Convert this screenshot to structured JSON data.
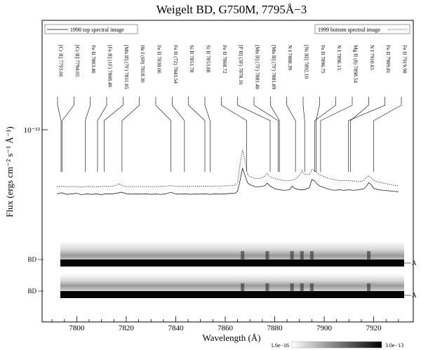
{
  "chart_data": {
    "type": "line",
    "title": "Weigelt BD, G750M, 7795Å−3",
    "xlabel": "Wavelength (Å)",
    "ylabel": "Flux (ergs cm⁻² s⁻¹ Å⁻¹)",
    "xlim": [
      7786,
      7936
    ],
    "y_scale": "log",
    "y_ticks": [
      {
        "value": 1e-12,
        "label": "10⁻¹²"
      }
    ],
    "x_ticks": [
      7800,
      7820,
      7840,
      7860,
      7880,
      7900,
      7920
    ],
    "legend": [
      {
        "label": "1998 top spectral image",
        "style": "solid",
        "placement": "top-left"
      },
      {
        "label": "1999 bottom spectral image",
        "style": "dotted",
        "placement": "top-right"
      }
    ],
    "line_labels": [
      {
        "text": "[Cr II] 7793.66",
        "wavelength": 7793.66
      },
      {
        "text": "[Cr II] 7794.05",
        "wavelength": 7794.05
      },
      {
        "text": "Fe II 7803.40",
        "wavelength": 7803.4
      },
      {
        "text": "[Fe II] (1F) 7808.40",
        "wavelength": 7808.4
      },
      {
        "text": "[Mn II] (7F) 7811.05",
        "wavelength": 7811.05
      },
      {
        "text": "He I (69) 7818.30",
        "wavelength": 7818.3
      },
      {
        "text": "Fe II 7838.06",
        "wavelength": 7838.06
      },
      {
        "text": "Fe II (72) 7843.54",
        "wavelength": 7843.54
      },
      {
        "text": "Si II 7851.78",
        "wavelength": 7851.78
      },
      {
        "text": "Si II 7853.88",
        "wavelength": 7853.88
      },
      {
        "text": "Fe II 7868.72",
        "wavelength": 7868.72
      },
      {
        "text": "[P II] (3F) 7878.16",
        "wavelength": 7878.16
      },
      {
        "text": "[Mn II] (7F) 7881.40",
        "wavelength": 7881.4
      },
      {
        "text": "[Mn II] (7F) 7881.89",
        "wavelength": 7881.89
      },
      {
        "text": "N I 7888.39",
        "wavelength": 7888.39
      },
      {
        "text": "[Ni III] 7892.10",
        "wavelength": 7892.1
      },
      {
        "text": "Fe II 7896.75",
        "wavelength": 7896.75
      },
      {
        "text": "N I 7896.15",
        "wavelength": 7896.15
      },
      {
        "text": "Mg II (8) 7898.54",
        "wavelength": 7898.54
      },
      {
        "text": "N I 7910.65",
        "wavelength": 7910.65
      },
      {
        "text": "Fe II 7909.81",
        "wavelength": 7909.81
      },
      {
        "text": "Fe II 7919.98",
        "wavelength": 7919.98
      }
    ],
    "series": [
      {
        "name": "1998 top spectral image",
        "style": "solid",
        "points": [
          [
            7792,
            0.37
          ],
          [
            7794,
            0.38
          ],
          [
            7796,
            0.365
          ],
          [
            7798,
            0.37
          ],
          [
            7800,
            0.375
          ],
          [
            7802,
            0.36
          ],
          [
            7804,
            0.37
          ],
          [
            7806,
            0.365
          ],
          [
            7808,
            0.37
          ],
          [
            7810,
            0.362
          ],
          [
            7812,
            0.372
          ],
          [
            7814,
            0.368
          ],
          [
            7816,
            0.375
          ],
          [
            7818,
            0.386
          ],
          [
            7820,
            0.372
          ],
          [
            7822,
            0.366
          ],
          [
            7824,
            0.37
          ],
          [
            7826,
            0.366
          ],
          [
            7828,
            0.37
          ],
          [
            7830,
            0.365
          ],
          [
            7832,
            0.368
          ],
          [
            7834,
            0.364
          ],
          [
            7836,
            0.37
          ],
          [
            7838,
            0.385
          ],
          [
            7840,
            0.37
          ],
          [
            7842,
            0.366
          ],
          [
            7844,
            0.37
          ],
          [
            7846,
            0.365
          ],
          [
            7848,
            0.368
          ],
          [
            7850,
            0.366
          ],
          [
            7852,
            0.37
          ],
          [
            7854,
            0.365
          ],
          [
            7856,
            0.37
          ],
          [
            7858,
            0.366
          ],
          [
            7860,
            0.37
          ],
          [
            7862,
            0.373
          ],
          [
            7864,
            0.375
          ],
          [
            7865,
            0.395
          ],
          [
            7866,
            0.5
          ],
          [
            7867,
            0.62
          ],
          [
            7868,
            0.55
          ],
          [
            7869,
            0.48
          ],
          [
            7870,
            0.46
          ],
          [
            7872,
            0.44
          ],
          [
            7874,
            0.44
          ],
          [
            7876,
            0.45
          ],
          [
            7877,
            0.475
          ],
          [
            7878,
            0.45
          ],
          [
            7880,
            0.42
          ],
          [
            7882,
            0.41
          ],
          [
            7884,
            0.405
          ],
          [
            7886,
            0.41
          ],
          [
            7887,
            0.445
          ],
          [
            7888,
            0.425
          ],
          [
            7890,
            0.41
          ],
          [
            7892,
            0.41
          ],
          [
            7894,
            0.43
          ],
          [
            7895,
            0.51
          ],
          [
            7896,
            0.5
          ],
          [
            7897,
            0.47
          ],
          [
            7898,
            0.45
          ],
          [
            7900,
            0.43
          ],
          [
            7902,
            0.415
          ],
          [
            7904,
            0.405
          ],
          [
            7906,
            0.41
          ],
          [
            7908,
            0.405
          ],
          [
            7910,
            0.41
          ],
          [
            7912,
            0.405
          ],
          [
            7914,
            0.41
          ],
          [
            7916,
            0.42
          ],
          [
            7917,
            0.44
          ],
          [
            7918,
            0.48
          ],
          [
            7919,
            0.46
          ],
          [
            7920,
            0.425
          ],
          [
            7922,
            0.41
          ],
          [
            7924,
            0.405
          ],
          [
            7926,
            0.4
          ],
          [
            7928,
            0.395
          ],
          [
            7930,
            0.39
          ]
        ]
      },
      {
        "name": "1999 bottom spectral image",
        "style": "dotted",
        "points": [
          [
            7792,
            0.44
          ],
          [
            7794,
            0.445
          ],
          [
            7796,
            0.438
          ],
          [
            7798,
            0.442
          ],
          [
            7800,
            0.44
          ],
          [
            7802,
            0.438
          ],
          [
            7804,
            0.442
          ],
          [
            7806,
            0.44
          ],
          [
            7808,
            0.44
          ],
          [
            7810,
            0.442
          ],
          [
            7812,
            0.445
          ],
          [
            7814,
            0.443
          ],
          [
            7816,
            0.455
          ],
          [
            7817,
            0.47
          ],
          [
            7818,
            0.455
          ],
          [
            7820,
            0.443
          ],
          [
            7822,
            0.44
          ],
          [
            7824,
            0.442
          ],
          [
            7826,
            0.44
          ],
          [
            7828,
            0.442
          ],
          [
            7830,
            0.44
          ],
          [
            7832,
            0.441
          ],
          [
            7834,
            0.443
          ],
          [
            7836,
            0.445
          ],
          [
            7838,
            0.452
          ],
          [
            7840,
            0.444
          ],
          [
            7842,
            0.443
          ],
          [
            7844,
            0.444
          ],
          [
            7846,
            0.443
          ],
          [
            7848,
            0.445
          ],
          [
            7850,
            0.444
          ],
          [
            7852,
            0.446
          ],
          [
            7854,
            0.445
          ],
          [
            7856,
            0.446
          ],
          [
            7858,
            0.447
          ],
          [
            7860,
            0.448
          ],
          [
            7862,
            0.45
          ],
          [
            7864,
            0.455
          ],
          [
            7865,
            0.48
          ],
          [
            7866,
            0.66
          ],
          [
            7867,
            0.8
          ],
          [
            7868,
            0.7
          ],
          [
            7869,
            0.56
          ],
          [
            7870,
            0.54
          ],
          [
            7872,
            0.52
          ],
          [
            7874,
            0.52
          ],
          [
            7876,
            0.545
          ],
          [
            7877,
            0.57
          ],
          [
            7878,
            0.54
          ],
          [
            7880,
            0.52
          ],
          [
            7882,
            0.51
          ],
          [
            7884,
            0.5
          ],
          [
            7886,
            0.5
          ],
          [
            7888,
            0.51
          ],
          [
            7890,
            0.55
          ],
          [
            7891,
            0.6
          ],
          [
            7892,
            0.56
          ],
          [
            7894,
            0.56
          ],
          [
            7895,
            0.61
          ],
          [
            7896,
            0.6
          ],
          [
            7897,
            0.58
          ],
          [
            7898,
            0.56
          ],
          [
            7900,
            0.54
          ],
          [
            7902,
            0.52
          ],
          [
            7904,
            0.51
          ],
          [
            7906,
            0.5
          ],
          [
            7908,
            0.5
          ],
          [
            7910,
            0.5
          ],
          [
            7912,
            0.495
          ],
          [
            7914,
            0.49
          ],
          [
            7916,
            0.5
          ],
          [
            7917,
            0.53
          ],
          [
            7918,
            0.545
          ],
          [
            7919,
            0.53
          ],
          [
            7920,
            0.5
          ],
          [
            7922,
            0.485
          ],
          [
            7924,
            0.475
          ],
          [
            7926,
            0.465
          ],
          [
            7928,
            0.455
          ],
          [
            7930,
            0.45
          ]
        ]
      }
    ],
    "spectral_images": {
      "row_labels_left": [
        "BD",
        "BD"
      ],
      "row_labels_right": [
        "A",
        "A"
      ],
      "colorbar": {
        "min_label": "1.6e−16",
        "max_label": "3.0e−13",
        "colors": [
          "#ffffff",
          "#000000"
        ]
      }
    }
  }
}
